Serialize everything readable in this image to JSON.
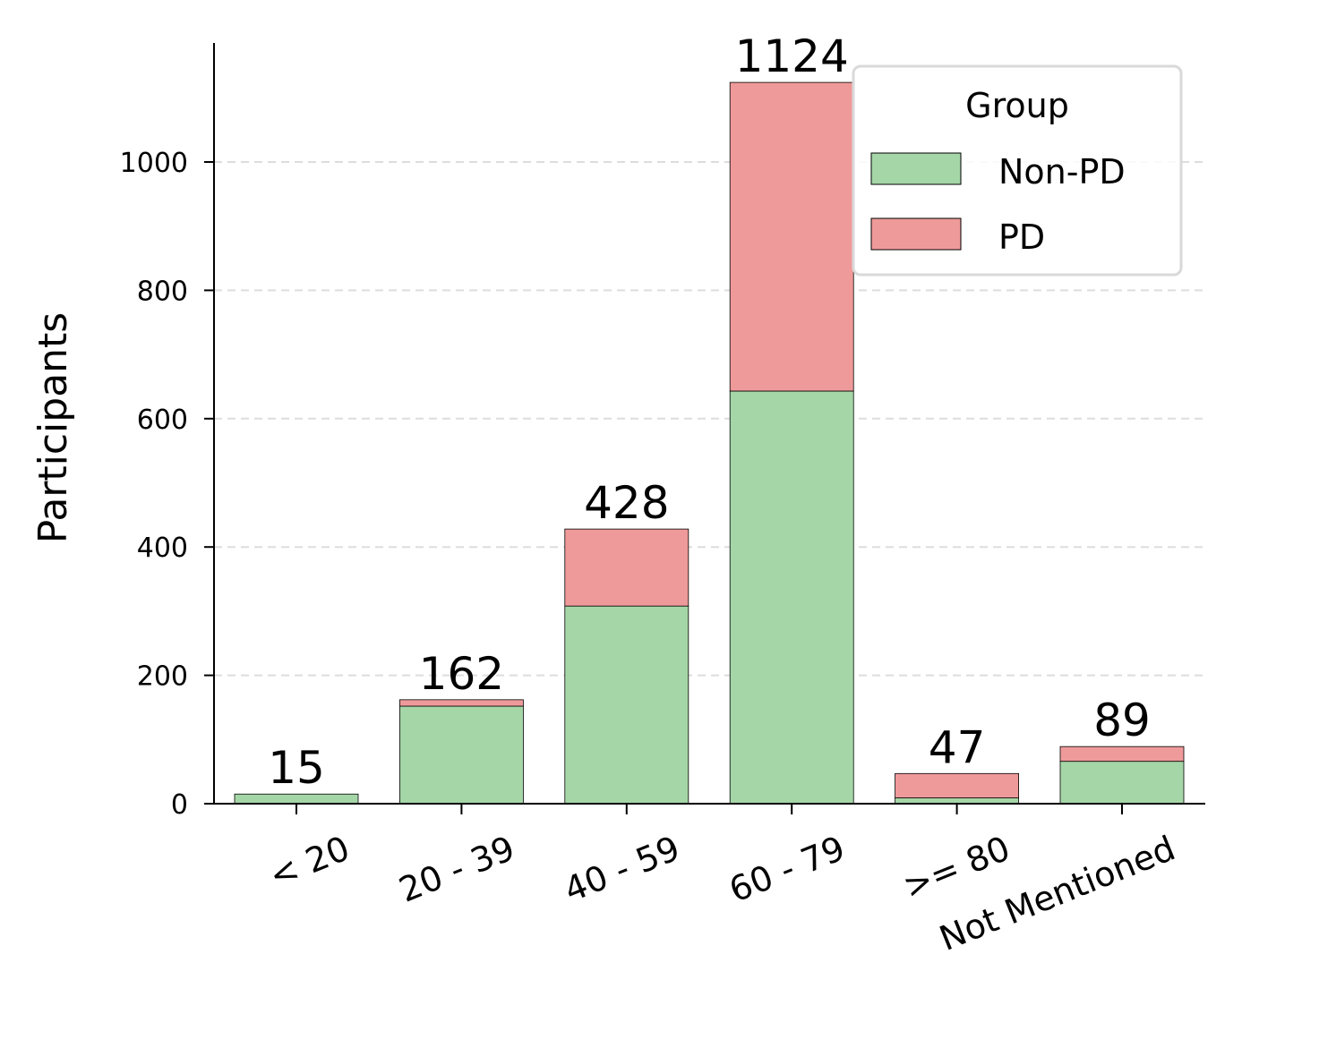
{
  "chart_data": {
    "type": "bar",
    "stacked": true,
    "categories": [
      "< 20",
      "20 - 39",
      "40 - 59",
      "60 - 79",
      ">= 80",
      "Not Mentioned"
    ],
    "series": [
      {
        "name": "Non-PD",
        "values": [
          15,
          152,
          308,
          643,
          9,
          66
        ],
        "color": "#a5d6a7"
      },
      {
        "name": "PD",
        "values": [
          0,
          10,
          120,
          481,
          38,
          23
        ],
        "color": "#ef9a9a"
      }
    ],
    "totals": [
      "15",
      "162",
      "428",
      "1124",
      "47",
      "89"
    ],
    "ylabel": "Participants",
    "xlabel": "",
    "ylim": [
      0,
      1180
    ],
    "yticks": [
      "0",
      "200",
      "400",
      "600",
      "800",
      "1000"
    ],
    "grid": "y-dashed",
    "legend": {
      "title": "Group",
      "position": "top-right"
    }
  }
}
